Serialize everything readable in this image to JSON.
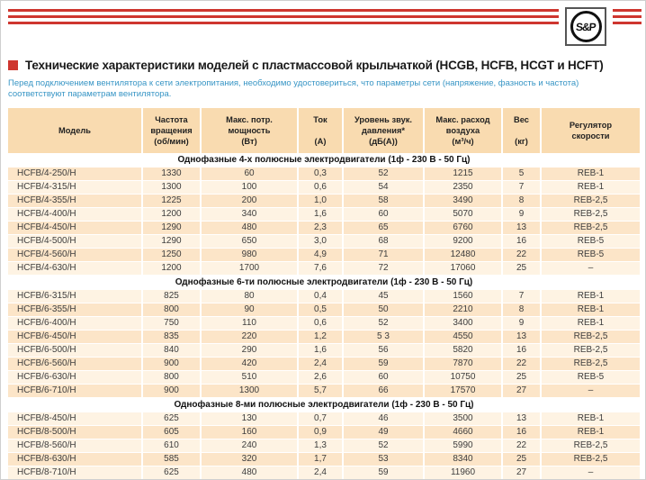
{
  "page": {
    "title": "Технические характеристики моделей с пластмассовой крыльчаткой (HCGB, HCFB, HCGT и HCFT)",
    "subtitle": "Перед подключением вентилятора к сети электропитания, необходимо удостовериться, что параметры сети (напряжение, фазность и частота) соответствуют параметрам вентилятора.",
    "logo_text": "S&P"
  },
  "colors": {
    "accent_red": "#CE362F",
    "subtitle_blue": "#3795C5",
    "header_bg": "#F9DBB0",
    "row_peach": "#FCE5C8",
    "row_light": "#FEF3E3",
    "text_dark": "#3D3D3D"
  },
  "table": {
    "columns": [
      {
        "key": "model",
        "label": "Модель"
      },
      {
        "key": "speed",
        "label": "Частота\nвращения\n(об/мин)"
      },
      {
        "key": "power",
        "label": "Макс. потр.\nмощность\n(Вт)"
      },
      {
        "key": "current",
        "label": "Ток\n\n(А)"
      },
      {
        "key": "noise",
        "label": "Уровень звук.\nдавления*\n(дБ(А))"
      },
      {
        "key": "airflow",
        "label": "Макс. расход\nвоздуха\n(м³/ч)"
      },
      {
        "key": "weight",
        "label": "Вес\n\n(кг)"
      },
      {
        "key": "regulator",
        "label": "Регулятор\nскорости"
      }
    ],
    "sections": [
      {
        "header": "Однофазные 4-х полюсные электродвигатели (1ф - 230 В - 50 Гц)",
        "start_shade": "peach",
        "rows": [
          [
            "HCFB/4-250/H",
            "1330",
            "60",
            "0,3",
            "52",
            "1215",
            "5",
            "REB-1"
          ],
          [
            "HCFB/4-315/H",
            "1300",
            "100",
            "0,6",
            "54",
            "2350",
            "7",
            "REB-1"
          ],
          [
            "HCFB/4-355/H",
            "1225",
            "200",
            "1,0",
            "58",
            "3490",
            "8",
            "REB-2,5"
          ],
          [
            "HCFB/4-400/H",
            "1200",
            "340",
            "1,6",
            "60",
            "5070",
            "9",
            "REB-2,5"
          ],
          [
            "HCFB/4-450/H",
            "1290",
            "480",
            "2,3",
            "65",
            "6760",
            "13",
            "REB-2,5"
          ],
          [
            "HCFB/4-500/H",
            "1290",
            "650",
            "3,0",
            "68",
            "9200",
            "16",
            "REB-5"
          ],
          [
            "HCFB/4-560/H",
            "1250",
            "980",
            "4,9",
            "71",
            "12480",
            "22",
            "REB-5"
          ],
          [
            "HCFB/4-630/H",
            "1200",
            "1700",
            "7,6",
            "72",
            "17060",
            "25",
            "–"
          ]
        ]
      },
      {
        "header": "Однофазные 6-ти полюсные электродвигатели (1ф - 230 В - 50 Гц)",
        "start_shade": "light",
        "rows": [
          [
            "HCFB/6-315/H",
            "825",
            "80",
            "0,4",
            "45",
            "1560",
            "7",
            "REB-1"
          ],
          [
            "HCFB/6-355/H",
            "800",
            "90",
            "0,5",
            "50",
            "2210",
            "8",
            "REB-1"
          ],
          [
            "HCFB/6-400/H",
            "750",
            "110",
            "0,6",
            "52",
            "3400",
            "9",
            "REB-1"
          ],
          [
            "HCFB/6-450/H",
            "835",
            "220",
            "1,2",
            "5 3",
            "4550",
            "13",
            "REB-2,5"
          ],
          [
            "HCFB/6-500/H",
            "840",
            "290",
            "1,6",
            "56",
            "5820",
            "16",
            "REB-2,5"
          ],
          [
            "HCFB/6-560/H",
            "900",
            "420",
            "2,4",
            "59",
            "7870",
            "22",
            "REB-2,5"
          ],
          [
            "HCFB/6-630/H",
            "800",
            "510",
            "2,6",
            "60",
            "10750",
            "25",
            "REB-5"
          ],
          [
            "HCFB/6-710/H",
            "900",
            "1300",
            "5,7",
            "66",
            "17570",
            "27",
            "–"
          ]
        ]
      },
      {
        "header": "Однофазные 8-ми полюсные электродвигатели (1ф - 230 В - 50 Гц)",
        "start_shade": "light",
        "rows": [
          [
            "HCFB/8-450/H",
            "625",
            "130",
            "0,7",
            "46",
            "3500",
            "13",
            "REB-1"
          ],
          [
            "HCFB/8-500/H",
            "605",
            "160",
            "0,9",
            "49",
            "4660",
            "16",
            "REB-1"
          ],
          [
            "HCFB/8-560/H",
            "610",
            "240",
            "1,3",
            "52",
            "5990",
            "22",
            "REB-2,5"
          ],
          [
            "HCFB/8-630/H",
            "585",
            "320",
            "1,7",
            "53",
            "8340",
            "25",
            "REB-2,5"
          ],
          [
            "HCFB/8-710/H",
            "625",
            "480",
            "2,4",
            "59",
            "11960",
            "27",
            "–"
          ]
        ]
      }
    ]
  }
}
